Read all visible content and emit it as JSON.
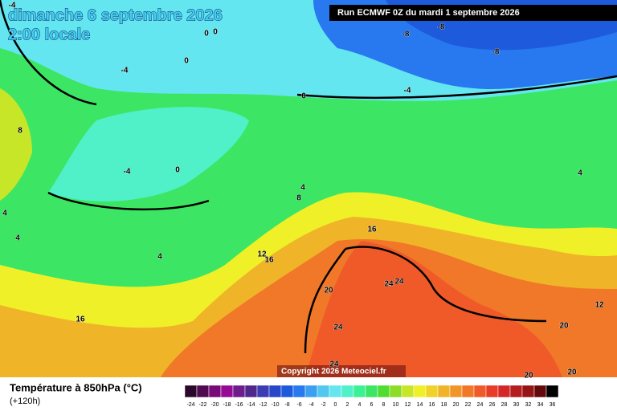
{
  "header": {
    "title": "dimanche 6 septembre 2026",
    "subtitle": "2:00 locale",
    "run": "Run ECMWF 0Z du mardi 1 septembre 2026"
  },
  "copyright": "Copyright 2026 Meteociel.fr",
  "legend": {
    "title": "Température à 850hPa (°C)",
    "lead": "(+120h)",
    "scale": [
      -24,
      -22,
      -20,
      -18,
      -16,
      -14,
      -12,
      -10,
      -8,
      -6,
      -4,
      -2,
      0,
      2,
      4,
      6,
      8,
      10,
      12,
      14,
      16,
      18,
      20,
      22,
      24,
      26,
      28,
      30,
      32,
      34,
      36
    ],
    "colors": [
      "#2a0a2a",
      "#500a50",
      "#780a78",
      "#960a96",
      "#6e1e8c",
      "#50288c",
      "#3c3cb4",
      "#2846c8",
      "#1e5adc",
      "#2878f0",
      "#3ca0f0",
      "#50c8f0",
      "#64e6f0",
      "#50f0c8",
      "#3cf096",
      "#3ce664",
      "#50dc32",
      "#8cdc28",
      "#c8e628",
      "#f0f028",
      "#f0d228",
      "#f0b428",
      "#f09628",
      "#f07828",
      "#f05a28",
      "#e63c28",
      "#d22828",
      "#b41e1e",
      "#961414",
      "#640a0a",
      "#000000"
    ]
  },
  "contour_labels": [
    -4,
    0,
    0,
    0,
    -4,
    -8,
    -8,
    -8,
    -4,
    0,
    8,
    -4,
    0,
    4,
    4,
    8,
    4,
    4,
    16,
    4,
    12,
    16,
    24,
    24,
    20,
    12,
    16,
    24,
    20,
    24,
    20,
    20
  ]
}
